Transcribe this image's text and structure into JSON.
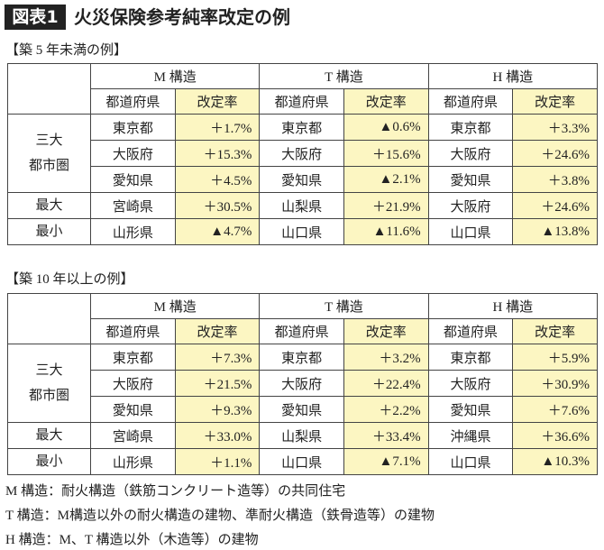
{
  "header": {
    "badge": "図表1",
    "title": "火災保険参考純率改定の例"
  },
  "tables": [
    {
      "caption": "【築 5 年未満の例】",
      "groups": [
        "M 構造",
        "T 構造",
        "H 構造"
      ],
      "subheaders": [
        "都道府県",
        "改定率"
      ],
      "row_groups": [
        {
          "label": "三大\n都市圏",
          "rows": [
            [
              "東京都",
              "＋1.7%",
              "東京都",
              "▲0.6%",
              "東京都",
              "＋3.3%"
            ],
            [
              "大阪府",
              "＋15.3%",
              "大阪府",
              "＋15.6%",
              "大阪府",
              "＋24.6%"
            ],
            [
              "愛知県",
              "＋4.5%",
              "愛知県",
              "▲2.1%",
              "愛知県",
              "＋3.8%"
            ]
          ]
        },
        {
          "label": "最大",
          "rows": [
            [
              "宮崎県",
              "＋30.5%",
              "山梨県",
              "＋21.9%",
              "大阪府",
              "＋24.6%"
            ]
          ]
        },
        {
          "label": "最小",
          "rows": [
            [
              "山形県",
              "▲4.7%",
              "山口県",
              "▲11.6%",
              "山口県",
              "▲13.8%"
            ]
          ]
        }
      ]
    },
    {
      "caption": "【築 10 年以上の例】",
      "groups": [
        "M 構造",
        "T 構造",
        "H 構造"
      ],
      "subheaders": [
        "都道府県",
        "改定率"
      ],
      "row_groups": [
        {
          "label": "三大\n都市圏",
          "rows": [
            [
              "東京都",
              "＋7.3%",
              "東京都",
              "＋3.2%",
              "東京都",
              "＋5.9%"
            ],
            [
              "大阪府",
              "＋21.5%",
              "大阪府",
              "＋22.4%",
              "大阪府",
              "＋30.9%"
            ],
            [
              "愛知県",
              "＋9.3%",
              "愛知県",
              "＋2.2%",
              "愛知県",
              "＋7.6%"
            ]
          ]
        },
        {
          "label": "最大",
          "rows": [
            [
              "宮崎県",
              "＋33.0%",
              "山梨県",
              "＋33.4%",
              "沖縄県",
              "＋36.6%"
            ]
          ]
        },
        {
          "label": "最小",
          "rows": [
            [
              "山形県",
              "＋1.1%",
              "山口県",
              "▲7.1%",
              "山口県",
              "▲10.3%"
            ]
          ]
        }
      ]
    }
  ],
  "notes": [
    "M 構造：耐火構造（鉄筋コンクリート造等）の共同住宅",
    "T 構造：M構造以外の耐火構造の建物、準耐火構造（鉄骨造等）の建物",
    "H 構造：M、T 構造以外（木造等）の建物"
  ]
}
